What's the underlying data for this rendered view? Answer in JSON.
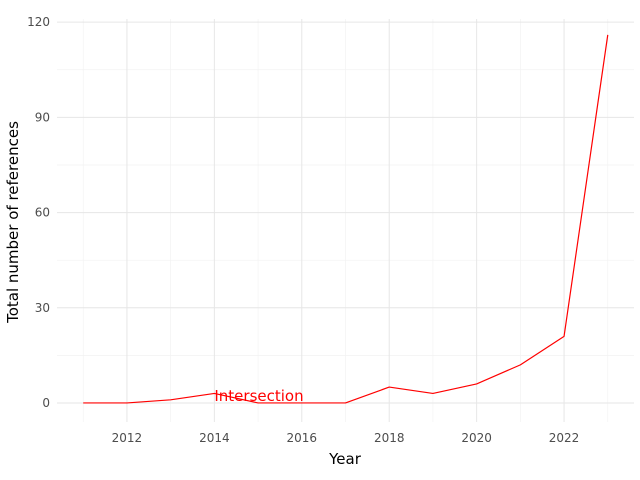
{
  "chart_data": {
    "type": "line",
    "title": "",
    "xlabel": "Year",
    "ylabel": "Total number of references",
    "xlim": [
      2010.4,
      2023.6
    ],
    "ylim": [
      -6,
      121
    ],
    "x_ticks": [
      2012,
      2014,
      2016,
      2018,
      2020,
      2022
    ],
    "y_ticks": [
      0,
      30,
      60,
      90,
      120
    ],
    "grid": true,
    "legend": "none",
    "series": [
      {
        "color": "#ff0000",
        "x": [
          2011,
          2012,
          2013,
          2014,
          2015,
          2016,
          2017,
          2018,
          2019,
          2020,
          2021,
          2022,
          2023
        ],
        "y": [
          0,
          0,
          1,
          3,
          0,
          0,
          0,
          5,
          3,
          6,
          12,
          21,
          116
        ]
      }
    ],
    "annotations": [
      {
        "text": "Intersection",
        "x": 2014,
        "y": 1,
        "color": "#ff0000"
      }
    ]
  }
}
